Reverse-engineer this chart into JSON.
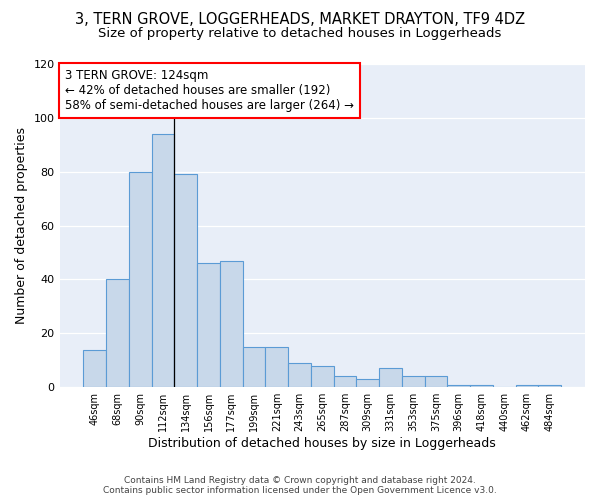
{
  "title_line1": "3, TERN GROVE, LOGGERHEADS, MARKET DRAYTON, TF9 4DZ",
  "title_line2": "Size of property relative to detached houses in Loggerheads",
  "xlabel": "Distribution of detached houses by size in Loggerheads",
  "ylabel": "Number of detached properties",
  "categories": [
    "46sqm",
    "68sqm",
    "90sqm",
    "112sqm",
    "134sqm",
    "156sqm",
    "177sqm",
    "199sqm",
    "221sqm",
    "243sqm",
    "265sqm",
    "287sqm",
    "309sqm",
    "331sqm",
    "353sqm",
    "375sqm",
    "396sqm",
    "418sqm",
    "440sqm",
    "462sqm",
    "484sqm"
  ],
  "values": [
    14,
    40,
    80,
    94,
    79,
    46,
    47,
    15,
    15,
    9,
    8,
    4,
    3,
    7,
    4,
    4,
    1,
    1,
    0,
    1,
    1
  ],
  "bar_color": "#c8d8ea",
  "bar_edge_color": "#5b9bd5",
  "background_color": "#e8eef8",
  "annotation_line1": "3 TERN GROVE: 124sqm",
  "annotation_line2": "← 42% of detached houses are smaller (192)",
  "annotation_line3": "58% of semi-detached houses are larger (264) →",
  "vertical_line_x": 3.5,
  "ylim": [
    0,
    120
  ],
  "yticks": [
    0,
    20,
    40,
    60,
    80,
    100,
    120
  ],
  "footer_text": "Contains HM Land Registry data © Crown copyright and database right 2024.\nContains public sector information licensed under the Open Government Licence v3.0.",
  "title_fontsize": 10.5,
  "subtitle_fontsize": 9.5,
  "xlabel_fontsize": 9,
  "ylabel_fontsize": 9,
  "annotation_fontsize": 8.5
}
